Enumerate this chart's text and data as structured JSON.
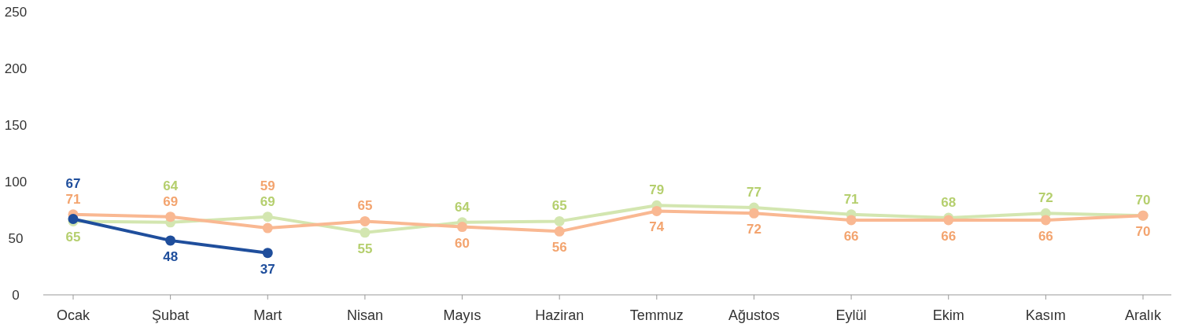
{
  "chart_data": {
    "type": "line",
    "categories": [
      "Ocak",
      "Şubat",
      "Mart",
      "Nisan",
      "Mayıs",
      "Haziran",
      "Temmuz",
      "Ağustos",
      "Eylül",
      "Ekim",
      "Kasım",
      "Aralık"
    ],
    "series": [
      {
        "color": "#d3e6b0",
        "values": [
          65,
          64,
          69,
          55,
          64,
          65,
          79,
          77,
          71,
          68,
          72,
          70
        ]
      },
      {
        "color": "#f9b892",
        "values": [
          71,
          69,
          59,
          65,
          60,
          56,
          74,
          72,
          66,
          66,
          66,
          70
        ]
      },
      {
        "color": "#1f4e9c",
        "values": [
          67,
          48,
          37,
          null,
          null,
          null,
          null,
          null,
          null,
          null,
          null,
          null
        ]
      }
    ],
    "ylim": [
      0,
      250
    ],
    "yticks": [
      0,
      50,
      100,
      150,
      200,
      250
    ],
    "grid": false,
    "marker": "circle",
    "line_style": "solid",
    "data_labels": true
  }
}
